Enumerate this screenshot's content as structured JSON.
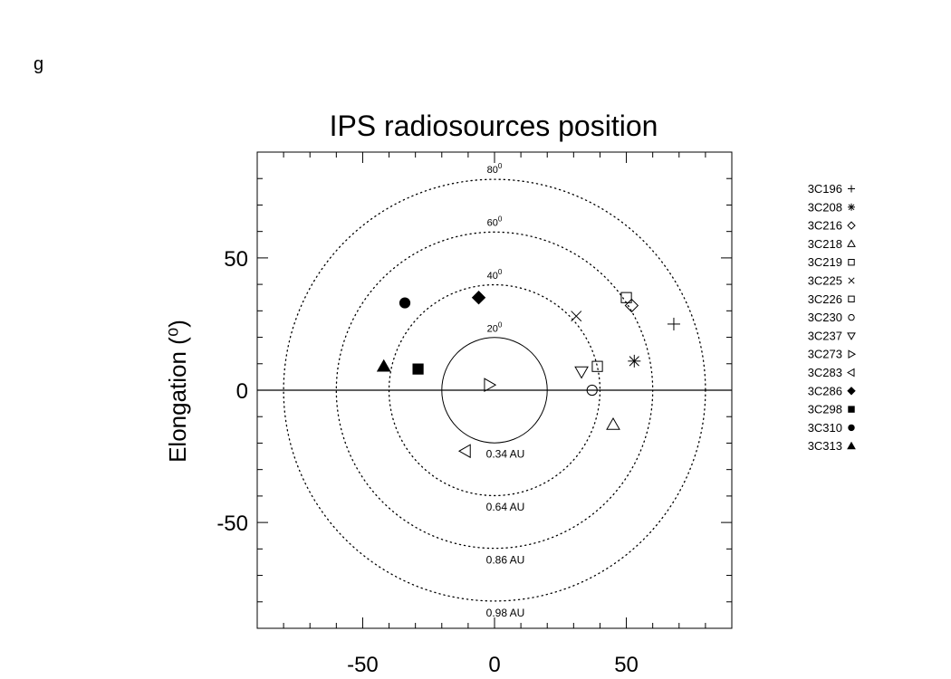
{
  "panel_label": "g",
  "chart_data": {
    "type": "scatter",
    "title": "IPS radiosources position",
    "xlabel": "",
    "ylabel": "Elongation (⁰)",
    "xlim": [
      -90,
      90
    ],
    "ylim": [
      -90,
      90
    ],
    "x_ticks": [
      -50,
      0,
      50
    ],
    "y_ticks": [
      -50,
      0,
      50
    ],
    "grid": false,
    "legend_position": "right",
    "circles": [
      {
        "radius": 20,
        "angle_label": "20",
        "au_label": "0.34 AU",
        "style": "solid"
      },
      {
        "radius": 40,
        "angle_label": "40",
        "au_label": "0.64 AU",
        "style": "dotted"
      },
      {
        "radius": 60,
        "angle_label": "60",
        "au_label": "0.86 AU",
        "style": "dotted"
      },
      {
        "radius": 80,
        "angle_label": "80",
        "au_label": "0.98 AU",
        "style": "dotted"
      }
    ],
    "series": [
      {
        "name": "3C196",
        "marker": "plus",
        "x": 68,
        "y": 25
      },
      {
        "name": "3C208",
        "marker": "asterisk",
        "x": 53,
        "y": 11
      },
      {
        "name": "3C216",
        "marker": "diamond-open",
        "x": 52,
        "y": 32
      },
      {
        "name": "3C218",
        "marker": "triangle-open",
        "x": 45,
        "y": -13
      },
      {
        "name": "3C219",
        "marker": "square-open",
        "x": 50,
        "y": 35
      },
      {
        "name": "3C225",
        "marker": "x",
        "x": 31,
        "y": 28
      },
      {
        "name": "3C226",
        "marker": "square-open",
        "x": 39,
        "y": 9
      },
      {
        "name": "3C230",
        "marker": "circle-open",
        "x": 37,
        "y": 0
      },
      {
        "name": "3C237",
        "marker": "triangle-down-open",
        "x": 33,
        "y": 7
      },
      {
        "name": "3C273",
        "marker": "triangle-right-open",
        "x": -2,
        "y": 2
      },
      {
        "name": "3C283",
        "marker": "triangle-left-open",
        "x": -11,
        "y": -23
      },
      {
        "name": "3C286",
        "marker": "diamond-filled",
        "x": -6,
        "y": 35
      },
      {
        "name": "3C298",
        "marker": "square-filled",
        "x": -29,
        "y": 8
      },
      {
        "name": "3C310",
        "marker": "circle-filled",
        "x": -34,
        "y": 33
      },
      {
        "name": "3C313",
        "marker": "triangle-filled",
        "x": -42,
        "y": 9
      }
    ]
  }
}
